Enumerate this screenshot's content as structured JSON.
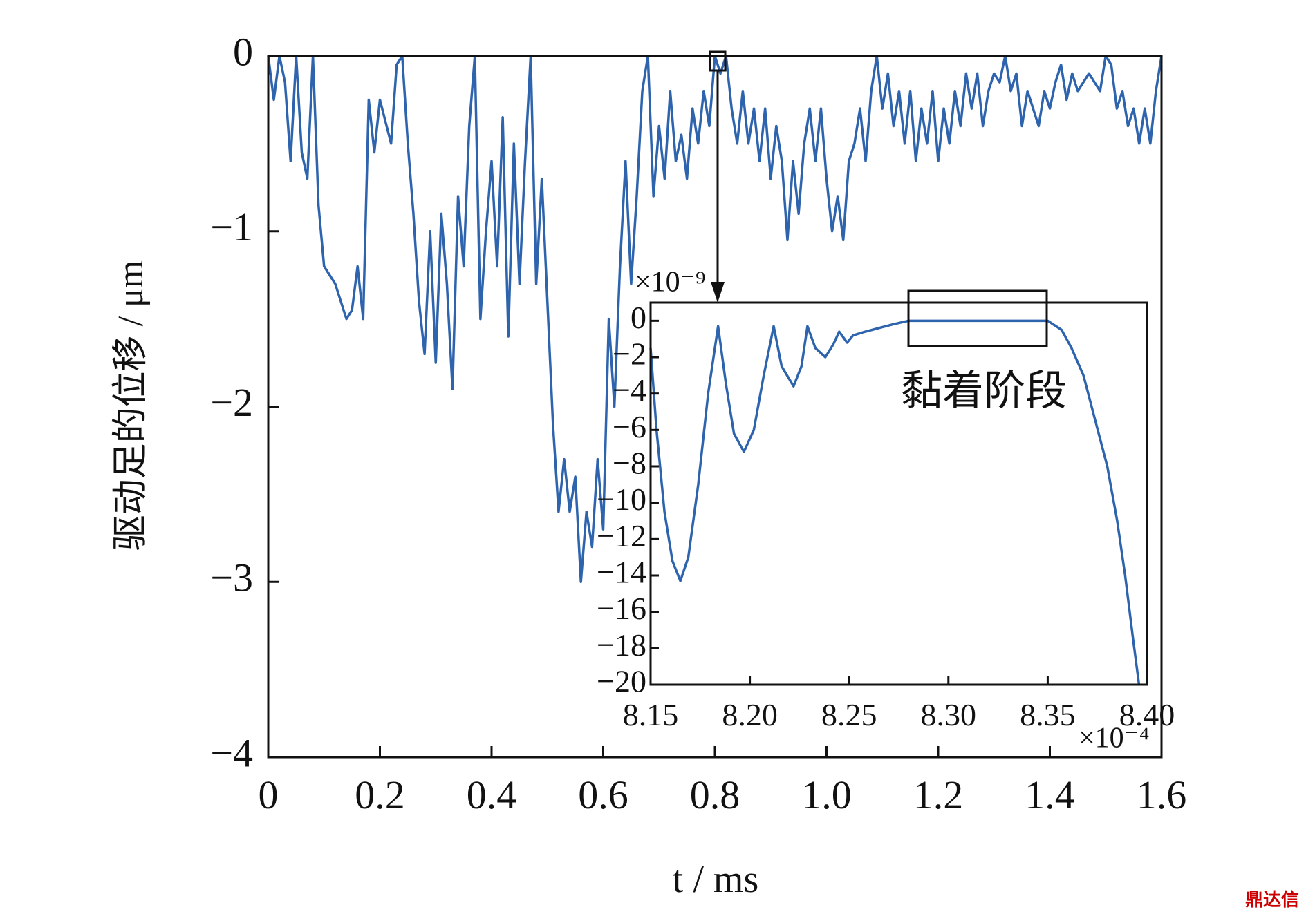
{
  "chart_data": [
    {
      "type": "line",
      "y_label": "驱动足的位移 / μm",
      "x_label": "t / ms",
      "xlim": [
        0,
        1.6
      ],
      "ylim": [
        -4,
        0
      ],
      "xticks": [
        0,
        0.2,
        0.4,
        0.6,
        0.8,
        {
          "value": 1,
          "label": "1.0"
        },
        1.2,
        1.4,
        1.6
      ],
      "yticks": [
        0,
        {
          "value": -1,
          "label": "−1"
        },
        {
          "value": -2,
          "label": "−2"
        },
        {
          "value": -3,
          "label": "−3"
        },
        {
          "value": -4,
          "label": "−4"
        }
      ],
      "series": [
        {
          "color": "#2e64ad",
          "x": [
            0,
            0.01,
            0.02,
            0.03,
            0.04,
            0.05,
            0.06,
            0.07,
            0.08,
            0.09,
            0.1,
            0.12,
            0.14,
            0.15,
            0.16,
            0.17,
            0.18,
            0.19,
            0.2,
            0.22,
            0.23,
            0.24,
            0.25,
            0.26,
            0.27,
            0.28,
            0.29,
            0.3,
            0.31,
            0.32,
            0.33,
            0.34,
            0.35,
            0.36,
            0.37,
            0.38,
            0.39,
            0.4,
            0.41,
            0.42,
            0.43,
            0.44,
            0.45,
            0.46,
            0.47,
            0.48,
            0.49,
            0.5,
            0.51,
            0.52,
            0.53,
            0.54,
            0.55,
            0.56,
            0.57,
            0.58,
            0.59,
            0.6,
            0.61,
            0.62,
            0.63,
            0.64,
            0.65,
            0.66,
            0.67,
            0.68,
            0.69,
            0.7,
            0.71,
            0.72,
            0.73,
            0.74,
            0.75,
            0.76,
            0.77,
            0.78,
            0.79,
            0.8,
            0.81,
            0.82,
            0.83,
            0.84,
            0.85,
            0.86,
            0.87,
            0.88,
            0.89,
            0.9,
            0.91,
            0.92,
            0.93,
            0.94,
            0.95,
            0.96,
            0.97,
            0.98,
            0.99,
            1.0,
            1.01,
            1.02,
            1.03,
            1.04,
            1.05,
            1.06,
            1.07,
            1.08,
            1.09,
            1.1,
            1.11,
            1.12,
            1.13,
            1.14,
            1.15,
            1.16,
            1.17,
            1.18,
            1.19,
            1.2,
            1.21,
            1.22,
            1.23,
            1.24,
            1.25,
            1.26,
            1.27,
            1.28,
            1.29,
            1.3,
            1.31,
            1.32,
            1.33,
            1.34,
            1.35,
            1.36,
            1.37,
            1.38,
            1.39,
            1.4,
            1.41,
            1.42,
            1.43,
            1.44,
            1.45,
            1.46,
            1.47,
            1.48,
            1.49,
            1.5,
            1.51,
            1.52,
            1.53,
            1.54,
            1.55,
            1.56,
            1.57,
            1.58,
            1.59,
            1.6
          ],
          "values": [
            0,
            -0.25,
            0,
            -0.15,
            -0.6,
            0,
            -0.55,
            -0.7,
            0,
            -0.85,
            -1.2,
            -1.3,
            -1.5,
            -1.45,
            -1.2,
            -1.5,
            -0.25,
            -0.55,
            -0.25,
            -0.5,
            -0.05,
            0,
            -0.5,
            -0.9,
            -1.4,
            -1.7,
            -1.0,
            -1.75,
            -0.9,
            -1.3,
            -1.9,
            -0.8,
            -1.2,
            -0.4,
            0,
            -1.5,
            -1.0,
            -0.6,
            -1.2,
            -0.35,
            -1.6,
            -0.5,
            -1.3,
            -0.6,
            0,
            -1.3,
            -0.7,
            -1.4,
            -2.1,
            -2.6,
            -2.3,
            -2.6,
            -2.4,
            -3.0,
            -2.6,
            -2.8,
            -2.3,
            -2.7,
            -1.5,
            -2.0,
            -1.2,
            -0.6,
            -1.3,
            -0.8,
            -0.2,
            0,
            -0.8,
            -0.4,
            -0.7,
            -0.2,
            -0.6,
            -0.45,
            -0.7,
            -0.3,
            -0.5,
            -0.2,
            -0.4,
            0,
            -0.1,
            0,
            -0.3,
            -0.5,
            -0.2,
            -0.5,
            -0.3,
            -0.6,
            -0.3,
            -0.7,
            -0.4,
            -0.6,
            -1.05,
            -0.6,
            -0.9,
            -0.5,
            -0.3,
            -0.6,
            -0.3,
            -0.7,
            -1.0,
            -0.8,
            -1.05,
            -0.6,
            -0.5,
            -0.3,
            -0.6,
            -0.2,
            0,
            -0.3,
            -0.1,
            -0.4,
            -0.2,
            -0.5,
            -0.2,
            -0.6,
            -0.3,
            -0.5,
            -0.2,
            -0.6,
            -0.3,
            -0.5,
            -0.2,
            -0.4,
            -0.1,
            -0.3,
            -0.1,
            -0.4,
            -0.2,
            -0.1,
            -0.15,
            0,
            -0.2,
            -0.1,
            -0.4,
            -0.2,
            -0.3,
            -0.4,
            -0.2,
            -0.3,
            -0.15,
            -0.05,
            -0.25,
            -0.1,
            -0.2,
            -0.15,
            -0.1,
            -0.15,
            -0.2,
            0,
            -0.05,
            -0.3,
            -0.2,
            -0.4,
            -0.3,
            -0.5,
            -0.3,
            -0.5,
            -0.2,
            0
          ]
        }
      ]
    },
    {
      "type": "line",
      "y_multiplier": "×10⁻⁹",
      "x_multiplier": "×10⁻⁴",
      "annotation": "黏着阶段",
      "xlim": [
        8.15,
        8.4
      ],
      "ylim": [
        -20,
        1
      ],
      "xticks": [
        8.15,
        {
          "value": 8.2,
          "label": "8.20"
        },
        8.25,
        {
          "value": 8.3,
          "label": "8.30"
        },
        8.35,
        {
          "value": 8.4,
          "label": "8.40"
        }
      ],
      "yticks": [
        0,
        {
          "value": -2,
          "label": "−2"
        },
        {
          "value": -4,
          "label": "−4"
        },
        {
          "value": -6,
          "label": "−6"
        },
        {
          "value": -8,
          "label": "−8"
        },
        {
          "value": -10,
          "label": "−10"
        },
        {
          "value": -12,
          "label": "−12"
        },
        {
          "value": -14,
          "label": "−14"
        },
        {
          "value": -16,
          "label": "−16"
        },
        {
          "value": -18,
          "label": "−18"
        },
        {
          "value": -20,
          "label": "−20"
        }
      ],
      "series": [
        {
          "color": "#2e64ad",
          "x": [
            8.15,
            8.153,
            8.157,
            8.161,
            8.165,
            8.169,
            8.174,
            8.179,
            8.184,
            8.188,
            8.192,
            8.197,
            8.202,
            8.207,
            8.212,
            8.216,
            8.222,
            8.226,
            8.229,
            8.233,
            8.238,
            8.242,
            8.245,
            8.249,
            8.252,
            8.258,
            8.265,
            8.272,
            8.28,
            8.29,
            8.3,
            8.31,
            8.32,
            8.33,
            8.34,
            8.35,
            8.357,
            8.362,
            8.368,
            8.374,
            8.38,
            8.385,
            8.389,
            8.393,
            8.396
          ],
          "values": [
            -1.5,
            -6,
            -10.5,
            -13.2,
            -14.3,
            -13,
            -9,
            -4,
            -0.3,
            -3.5,
            -6.2,
            -7.2,
            -6,
            -3,
            -0.3,
            -2.5,
            -3.6,
            -2.5,
            -0.3,
            -1.5,
            -2,
            -1.3,
            -0.6,
            -1.2,
            -0.8,
            -0.6,
            -0.4,
            -0.2,
            0,
            0,
            0,
            0,
            0,
            0,
            0,
            0,
            -0.5,
            -1.5,
            -3,
            -5.5,
            -8,
            -11,
            -14,
            -17.5,
            -20
          ]
        }
      ]
    }
  ],
  "watermark": "鼎达信"
}
